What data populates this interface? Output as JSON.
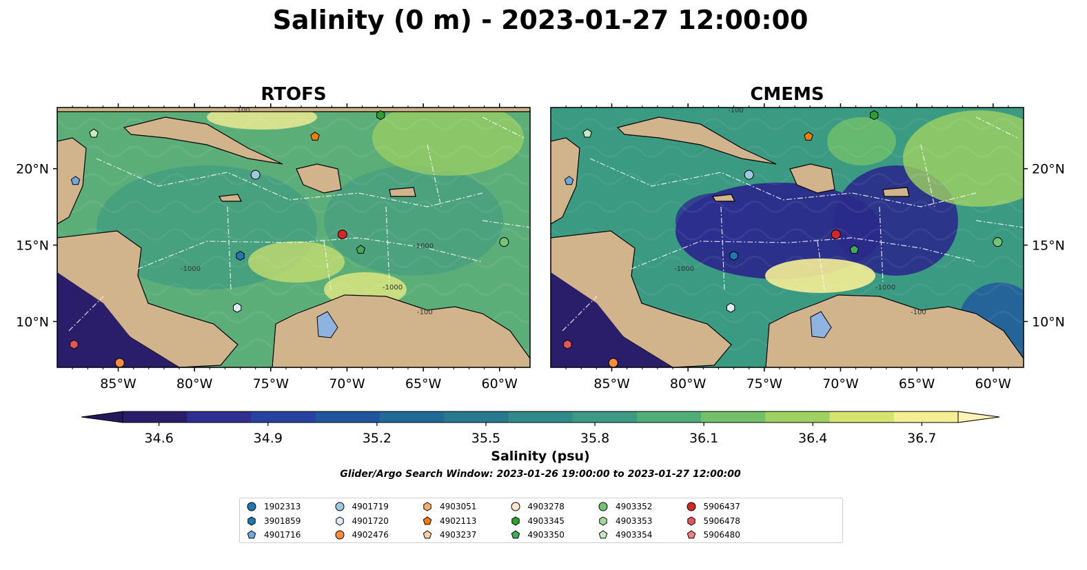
{
  "title": "Salinity (0 m) - 2023-01-27 12:00:00",
  "chart_data": [
    {
      "type": "heatmap",
      "title": "RTOFS",
      "x_ticks": [
        "85°W",
        "80°W",
        "75°W",
        "70°W",
        "65°W",
        "60°W"
      ],
      "x_tick_values": [
        -85,
        -80,
        -75,
        -70,
        -65,
        -60
      ],
      "y_ticks": [
        "10°N",
        "15°N",
        "20°N"
      ],
      "y_tick_values": [
        10,
        15,
        20
      ],
      "xlim": [
        -89,
        -58
      ],
      "ylim": [
        7,
        24
      ],
      "contour_labels": [
        "-100",
        "-1000",
        "-1000",
        "-100",
        "-1000"
      ],
      "sources": [
        {
          "id": "4901716",
          "lon": -87.8,
          "lat": 19.2
        },
        {
          "id": "4903354",
          "lon": -86.6,
          "lat": 22.3
        },
        {
          "id": "4901719",
          "lon": -76.0,
          "lat": 19.6
        },
        {
          "id": "4902113",
          "lon": -72.1,
          "lat": 22.1
        },
        {
          "id": "4903345",
          "lon": -67.8,
          "lat": 23.5
        },
        {
          "id": "3901859",
          "lon": -77.0,
          "lat": 14.3
        },
        {
          "id": "4903350",
          "lon": -69.1,
          "lat": 14.7
        },
        {
          "id": "5906437",
          "lon": -70.3,
          "lat": 15.7
        },
        {
          "id": "4903352",
          "lon": -59.7,
          "lat": 15.2
        },
        {
          "id": "4901720",
          "lon": -77.2,
          "lat": 10.9
        },
        {
          "id": "5906478",
          "lon": -87.9,
          "lat": 8.5
        },
        {
          "id": "4902476",
          "lon": -84.9,
          "lat": 7.3
        }
      ]
    },
    {
      "type": "heatmap",
      "title": "CMEMS",
      "x_ticks": [
        "85°W",
        "80°W",
        "75°W",
        "70°W",
        "65°W",
        "60°W"
      ],
      "x_tick_values": [
        -85,
        -80,
        -75,
        -70,
        -65,
        -60
      ],
      "y_ticks": [
        "10°N",
        "15°N",
        "20°N"
      ],
      "y_tick_values": [
        10,
        15,
        20
      ],
      "xlim": [
        -89,
        -58
      ],
      "ylim": [
        7,
        24
      ],
      "contour_labels": [
        "-100",
        "-1000",
        "-100",
        "-1000"
      ],
      "sources": [
        {
          "id": "4901716",
          "lon": -87.8,
          "lat": 19.2
        },
        {
          "id": "4903354",
          "lon": -86.6,
          "lat": 22.3
        },
        {
          "id": "4901719",
          "lon": -76.0,
          "lat": 19.6
        },
        {
          "id": "4902113",
          "lon": -72.1,
          "lat": 22.1
        },
        {
          "id": "4903345",
          "lon": -67.8,
          "lat": 23.5
        },
        {
          "id": "3901859",
          "lon": -77.0,
          "lat": 14.3
        },
        {
          "id": "4903350",
          "lon": -69.1,
          "lat": 14.7
        },
        {
          "id": "5906437",
          "lon": -70.3,
          "lat": 15.7
        },
        {
          "id": "4903352",
          "lon": -59.7,
          "lat": 15.2
        },
        {
          "id": "4901720",
          "lon": -77.2,
          "lat": 10.9
        },
        {
          "id": "5906478",
          "lon": -87.9,
          "lat": 8.5
        },
        {
          "id": "4902476",
          "lon": -84.9,
          "lat": 7.3
        }
      ]
    }
  ],
  "colorbar": {
    "label": "Salinity (psu)",
    "min": 34.5,
    "max": 36.8,
    "ticks": [
      "34.6",
      "34.9",
      "35.2",
      "35.5",
      "35.8",
      "36.1",
      "36.4",
      "36.7"
    ],
    "tick_values": [
      34.6,
      34.9,
      35.2,
      35.5,
      35.8,
      36.1,
      36.4,
      36.7
    ],
    "colors": [
      "#2a1e6b",
      "#2e2f8f",
      "#2742a0",
      "#1f569d",
      "#1f6a96",
      "#277a8e",
      "#2f8a89",
      "#3a9a82",
      "#4fae77",
      "#72c06a",
      "#a0d263",
      "#d4e46f",
      "#f5ee93"
    ],
    "under_color": "#26185c",
    "over_color": "#fbf4b4"
  },
  "search_window": "Glider/Argo Search Window: 2023-01-26 19:00:00 to 2023-01-27 12:00:00",
  "land_color": "#d2b48c",
  "legend": [
    {
      "id": "1902313",
      "marker": "circle",
      "color": "#1f77b4"
    },
    {
      "id": "3901859",
      "marker": "hexagon",
      "color": "#1f77b4"
    },
    {
      "id": "4901716",
      "marker": "pentagon",
      "color": "#6fa8dc"
    },
    {
      "id": "4901719",
      "marker": "circle",
      "color": "#9ecae1"
    },
    {
      "id": "4901720",
      "marker": "hexagon",
      "color": "#deebf7"
    },
    {
      "id": "4902476",
      "marker": "circle",
      "color": "#fd8d3c"
    },
    {
      "id": "4903051",
      "marker": "hexagon",
      "color": "#fdae6b"
    },
    {
      "id": "4902113",
      "marker": "pentagon",
      "color": "#f57c00"
    },
    {
      "id": "4903237",
      "marker": "pentagon",
      "color": "#fdd0a2"
    },
    {
      "id": "4903278",
      "marker": "circle",
      "color": "#fee6ce"
    },
    {
      "id": "4903345",
      "marker": "hexagon",
      "color": "#2ca02c"
    },
    {
      "id": "4903350",
      "marker": "pentagon",
      "color": "#41ab5d"
    },
    {
      "id": "4903352",
      "marker": "circle",
      "color": "#74c476"
    },
    {
      "id": "4903353",
      "marker": "hexagon",
      "color": "#a1d99b"
    },
    {
      "id": "4903354",
      "marker": "pentagon",
      "color": "#c7e9c0"
    },
    {
      "id": "5906437",
      "marker": "circle",
      "color": "#d62728"
    },
    {
      "id": "5906478",
      "marker": "hexagon",
      "color": "#e15759"
    },
    {
      "id": "5906480",
      "marker": "pentagon",
      "color": "#f08080"
    }
  ]
}
